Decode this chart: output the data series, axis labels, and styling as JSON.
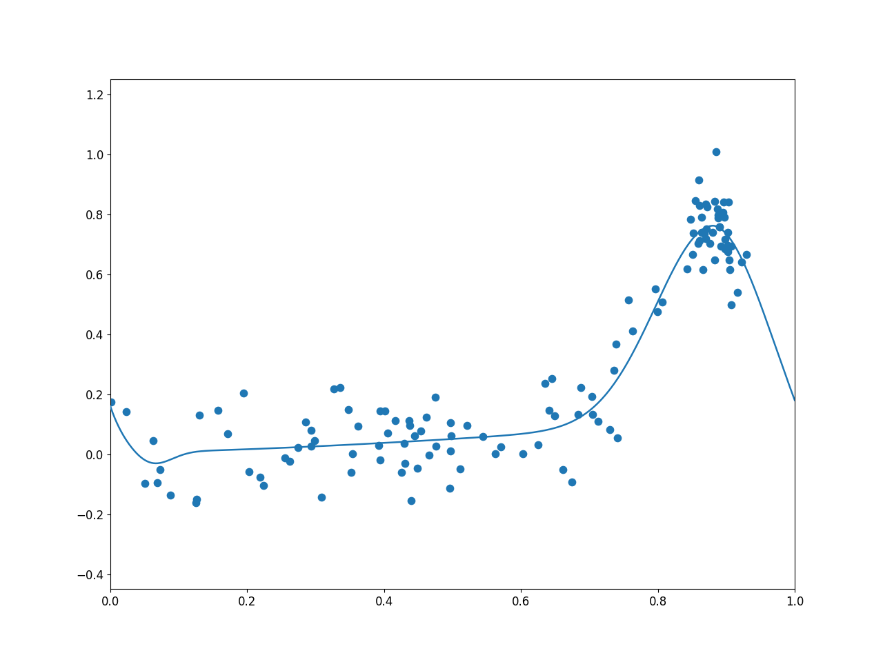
{
  "title": "",
  "xlabel": "",
  "ylabel": "",
  "xlim": [
    0.0,
    1.0
  ],
  "ylim": [
    -0.45,
    1.25
  ],
  "line_color": "#1f77b4",
  "dot_color": "#1f77b4",
  "dot_size": 55,
  "line_width": 1.8,
  "figsize": [
    12.8,
    9.6
  ],
  "dpi": 100
}
